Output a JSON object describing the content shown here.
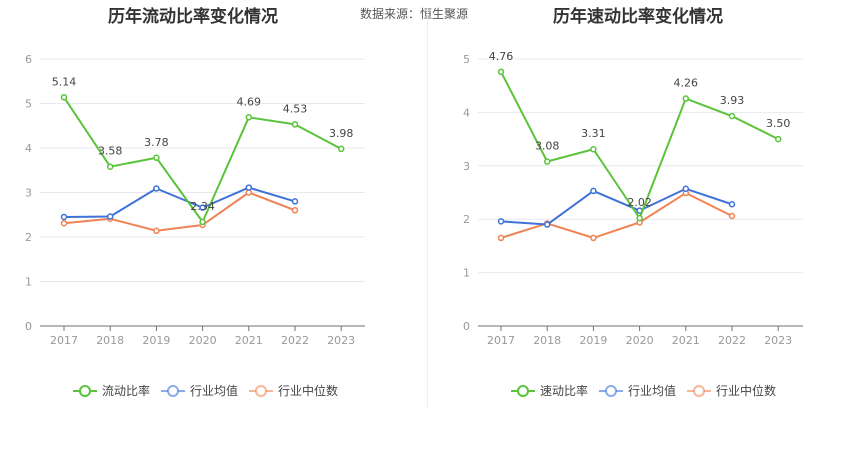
{
  "source": "数据来源：恒生聚源",
  "chart_data": [
    {
      "type": "line",
      "title": "历年流动比率变化情况",
      "categories": [
        "2017",
        "2018",
        "2019",
        "2020",
        "2021",
        "2022",
        "2023"
      ],
      "ylim": [
        0,
        6
      ],
      "yticks": [
        0,
        1,
        2,
        3,
        4,
        5,
        6
      ],
      "series": [
        {
          "name": "流动比率",
          "color": "#5ac33b",
          "values": [
            5.14,
            3.58,
            3.78,
            2.34,
            4.69,
            4.53,
            3.98
          ],
          "labels": [
            "5.14",
            "3.58",
            "3.78",
            "2.34",
            "4.69",
            "4.53",
            "3.98"
          ]
        },
        {
          "name": "行业均值",
          "color": "#3f72d9",
          "values": [
            2.45,
            2.46,
            3.09,
            2.66,
            3.11,
            2.8,
            null
          ]
        },
        {
          "name": "行业中位数",
          "color": "#f08355",
          "values": [
            2.31,
            2.41,
            2.14,
            2.27,
            3.0,
            2.6,
            null
          ]
        }
      ]
    },
    {
      "type": "line",
      "title": "历年速动比率变化情况",
      "categories": [
        "2017",
        "2018",
        "2019",
        "2020",
        "2021",
        "2022",
        "2023"
      ],
      "ylim": [
        0,
        5
      ],
      "yticks": [
        0,
        1,
        2,
        3,
        4,
        5
      ],
      "series": [
        {
          "name": "速动比率",
          "color": "#5ac33b",
          "values": [
            4.76,
            3.08,
            3.31,
            2.02,
            4.26,
            3.93,
            3.5
          ],
          "labels": [
            "4.76",
            "3.08",
            "3.31",
            "2.02",
            "4.26",
            "3.93",
            "3.50"
          ]
        },
        {
          "name": "行业均值",
          "color": "#3f72d9",
          "values": [
            1.96,
            1.9,
            2.53,
            2.16,
            2.57,
            2.28,
            null
          ]
        },
        {
          "name": "行业中位数",
          "color": "#f08355",
          "values": [
            1.65,
            1.92,
            1.65,
            1.94,
            2.49,
            2.06,
            null
          ]
        }
      ]
    }
  ]
}
